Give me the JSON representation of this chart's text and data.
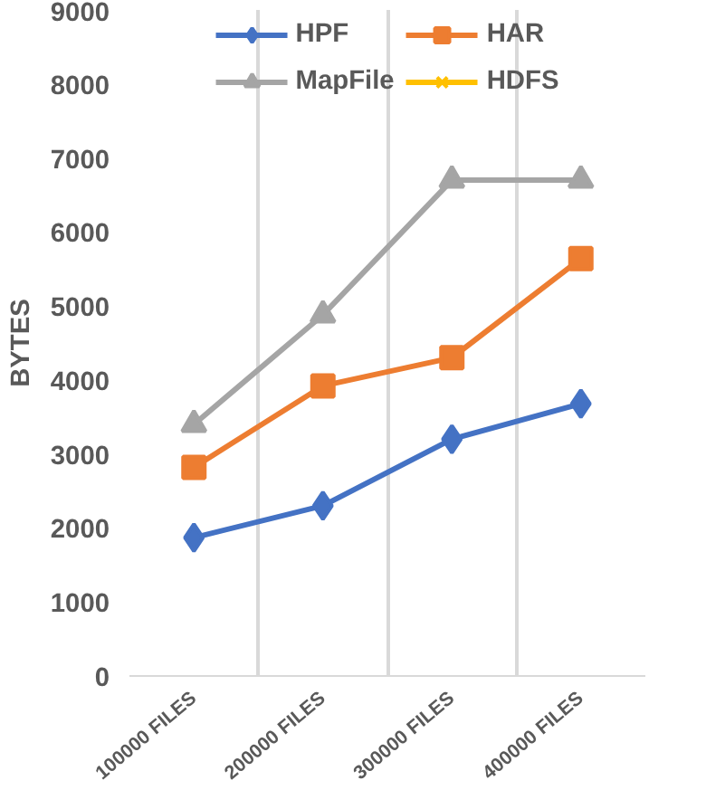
{
  "chart_data": {
    "type": "line",
    "ylabel": "BYTES",
    "categories": [
      "100000 FILES",
      "200000 FILES",
      "300000 FILES",
      "400000 FILES"
    ],
    "series": [
      {
        "name": "HPF",
        "color": "#4472c4",
        "marker": "diamond",
        "values": [
          1870,
          2300,
          3200,
          3680
        ]
      },
      {
        "name": "HAR",
        "color": "#ed7d31",
        "marker": "square",
        "values": [
          2820,
          3920,
          4300,
          5640
        ]
      },
      {
        "name": "MapFile",
        "color": "#a5a5a5",
        "marker": "triangle",
        "values": [
          3400,
          4880,
          6700,
          6700
        ]
      },
      {
        "name": "HDFS",
        "color": "#ffc000",
        "marker": "cross",
        "values": [
          null,
          null,
          null,
          null
        ]
      }
    ],
    "ylim": [
      0,
      9000
    ],
    "yticks": [
      0,
      1000,
      2000,
      3000,
      4000,
      5000,
      6000,
      7000,
      8000,
      9000
    ],
    "grid": "x",
    "legend": "top"
  }
}
